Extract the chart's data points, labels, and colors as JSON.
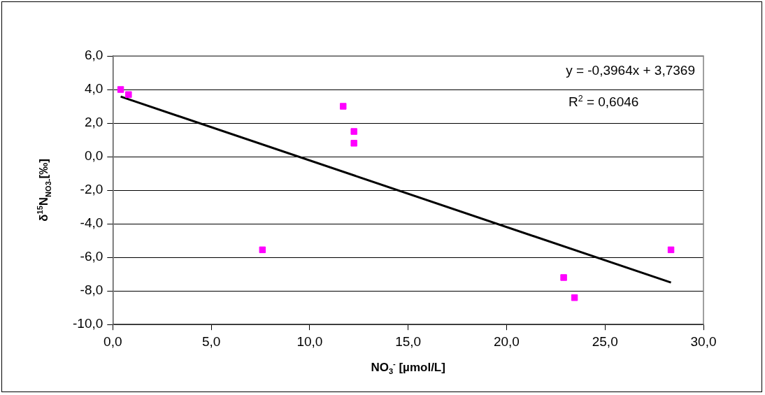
{
  "chart_data": {
    "type": "scatter",
    "xlabel": "NO$_{3}$$^{-}$ [µmol/L]",
    "ylabel": "δ$^{15}$N$_{NO3-}$[‰]",
    "series": [
      {
        "type": "scatter",
        "color": "#ff00ff",
        "marker": "square",
        "x": [
          0.4,
          0.8,
          11.7,
          12.25,
          12.25,
          7.6,
          22.9,
          23.45,
          28.35
        ],
        "values": [
          4.0,
          3.7,
          3.0,
          1.5,
          0.8,
          -5.55,
          -7.2,
          -8.4,
          -5.55
        ]
      },
      {
        "type": "line",
        "color": "#000000",
        "marker": "none",
        "x": [
          0.4,
          28.35
        ],
        "values": [
          3.58,
          -7.5
        ]
      }
    ],
    "annotations": [
      "y = -0,3964x + 3,7369",
      "R$^{2}$ = 0,6046"
    ],
    "xlim": [
      0,
      30
    ],
    "xticks": [
      {
        "value": 0,
        "label": "0,0"
      },
      {
        "value": 5,
        "label": "5,0"
      },
      {
        "value": 10,
        "label": "10,0"
      },
      {
        "value": 15,
        "label": "15,0"
      },
      {
        "value": 20,
        "label": "20,0"
      },
      {
        "value": 25,
        "label": "25,0"
      },
      {
        "value": 30,
        "label": "30,0"
      }
    ],
    "ylim": [
      -10,
      6
    ],
    "yticks": [
      {
        "value": -10,
        "label": "-10,0"
      },
      {
        "value": -8,
        "label": "-8,0"
      },
      {
        "value": -6,
        "label": "-6,0"
      },
      {
        "value": -4,
        "label": "-4,0"
      },
      {
        "value": -2,
        "label": "-2,0"
      },
      {
        "value": 0,
        "label": "0,0"
      },
      {
        "value": 2,
        "label": "2,0"
      },
      {
        "value": 4,
        "label": "4,0"
      },
      {
        "value": 6,
        "label": "6,0"
      }
    ],
    "grid": "y",
    "legend": false
  }
}
